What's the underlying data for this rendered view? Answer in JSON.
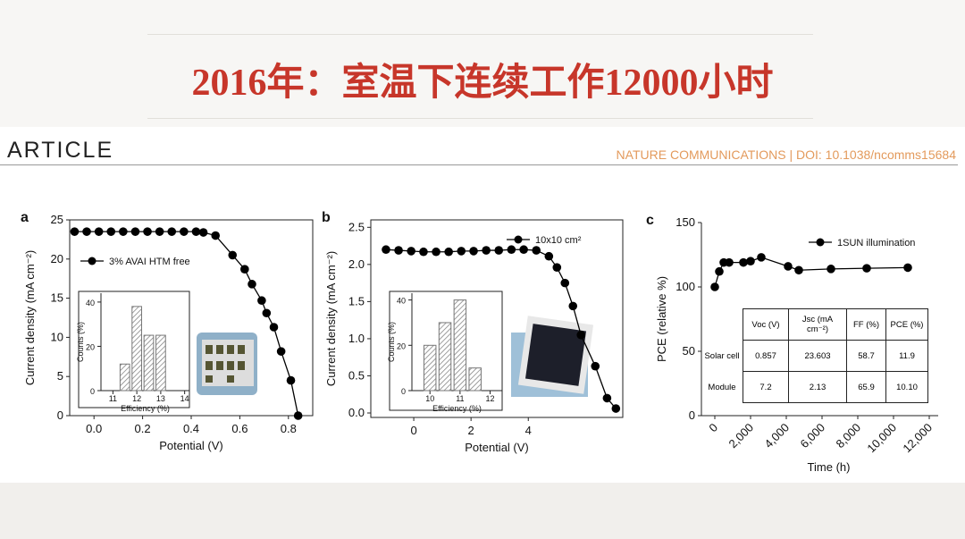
{
  "header": {
    "title": "2016年：室温下连续工作12000小时",
    "article": "ARTICLE",
    "journal": "NATURE COMMUNICATIONS | DOI: 10.1038/ncomms15684"
  },
  "chart_data": [
    {
      "type": "line",
      "panel_label": "a",
      "xlabel": "Potential (V)",
      "ylabel": "Current density (mA cm⁻²)",
      "xlim": [
        -0.1,
        0.9
      ],
      "ylim": [
        0,
        25
      ],
      "xticks": [
        {
          "value": 0,
          "label": "0.0"
        },
        0.2,
        0.4,
        0.6,
        0.8
      ],
      "yticks": [
        0,
        5,
        10,
        15,
        20,
        25
      ],
      "legend": "upper left",
      "x": [
        -0.08,
        -0.03,
        0.02,
        0.07,
        0.12,
        0.17,
        0.22,
        0.27,
        0.32,
        0.37,
        0.42,
        0.45,
        0.5,
        0.57,
        0.62,
        0.65,
        0.69,
        0.71,
        0.74,
        0.77,
        0.81,
        0.84
      ],
      "series": [
        {
          "name": "3% AVAI HTM free",
          "color": "#000000",
          "values": [
            23.5,
            23.5,
            23.5,
            23.5,
            23.5,
            23.5,
            23.5,
            23.5,
            23.5,
            23.5,
            23.5,
            23.4,
            23,
            20.5,
            18.7,
            16.8,
            14.7,
            13.1,
            11.3,
            8.2,
            4.5,
            0
          ]
        }
      ]
    },
    {
      "type": "histogram",
      "xlabel": "Efficiency (%)",
      "ylabel": "Counts (%)",
      "xlim": [
        10.5,
        14.2
      ],
      "ylim": [
        0,
        44
      ],
      "xticks": [
        11,
        12,
        13,
        14
      ],
      "yticks": [
        0,
        20,
        40
      ],
      "bins": [
        11.25,
        11.75,
        12.25,
        12.75,
        13.25
      ],
      "values": [
        12,
        38,
        25,
        25
      ],
      "color": "#777777"
    },
    {
      "type": "line",
      "panel_label": "b",
      "xlabel": "Potential (V)",
      "ylabel": "Current density (mA cm⁻²)",
      "xlim": [
        -1.5,
        7.3
      ],
      "ylim": [
        -0.06,
        2.6
      ],
      "xticks": [
        0,
        2,
        4
      ],
      "yticks": [
        {
          "value": 0,
          "label": "0.0"
        },
        0.5,
        {
          "value": 1,
          "label": "1.0"
        },
        1.5,
        {
          "value": 2,
          "label": "2.0"
        },
        2.5
      ],
      "legend": "upper right",
      "x": [
        -0.97,
        -0.53,
        -0.09,
        0.34,
        0.78,
        1.22,
        1.66,
        2.09,
        2.53,
        2.97,
        3.41,
        3.84,
        4.28,
        4.72,
        5.0,
        5.28,
        5.56,
        5.84,
        6.34,
        6.75,
        7.06
      ],
      "series": [
        {
          "name": "10x10 cm²",
          "color": "#000000",
          "values": [
            2.2,
            2.19,
            2.18,
            2.17,
            2.17,
            2.17,
            2.18,
            2.18,
            2.19,
            2.19,
            2.2,
            2.2,
            2.19,
            2.11,
            1.96,
            1.75,
            1.44,
            1.05,
            0.63,
            0.2,
            0.06
          ]
        }
      ]
    },
    {
      "type": "histogram",
      "xlabel": "Efficiency (%)",
      "ylabel": "Counts (%)",
      "xlim": [
        9.4,
        12.4
      ],
      "ylim": [
        0,
        43
      ],
      "xticks": [
        10,
        11,
        12
      ],
      "yticks": [
        0,
        20,
        40
      ],
      "bins": [
        9.75,
        10.25,
        10.75,
        11.25,
        11.75
      ],
      "values": [
        20,
        30,
        40,
        10
      ],
      "color": "#777777"
    },
    {
      "type": "line",
      "panel_label": "c",
      "xlabel": "Time (h)",
      "ylabel": "PCE (relative %)",
      "xlim": [
        -750,
        12500
      ],
      "ylim": [
        0,
        150
      ],
      "xticks": [
        0,
        {
          "value": 2000,
          "label": "2,000"
        },
        {
          "value": 4000,
          "label": "4,000"
        },
        {
          "value": 6000,
          "label": "6,000"
        },
        {
          "value": 8000,
          "label": "8,000"
        },
        {
          "value": 10000,
          "label": "10,000"
        },
        {
          "value": 12000,
          "label": "12,000"
        }
      ],
      "yticks": [
        0,
        50,
        100,
        150
      ],
      "legend": "upper right",
      "x": [
        0,
        250,
        500,
        800,
        1600,
        2000,
        2600,
        4100,
        4700,
        6500,
        8500,
        10800
      ],
      "series": [
        {
          "name": "1SUN illumination",
          "color": "#000000",
          "values": [
            100,
            112,
            119,
            119,
            119,
            120,
            123,
            116,
            113,
            114,
            114.5,
            115
          ]
        }
      ],
      "table": {
        "columns": [
          "Voc (V)",
          "Jsc (mA cm⁻²)",
          "FF (%)",
          "PCE (%)"
        ],
        "rows": [
          [
            "Solar cell",
            "0.857",
            "23.603",
            "58.7",
            "11.9"
          ],
          [
            "Module",
            "7.2",
            "2.13",
            "65.9",
            "10.10"
          ]
        ]
      }
    }
  ]
}
